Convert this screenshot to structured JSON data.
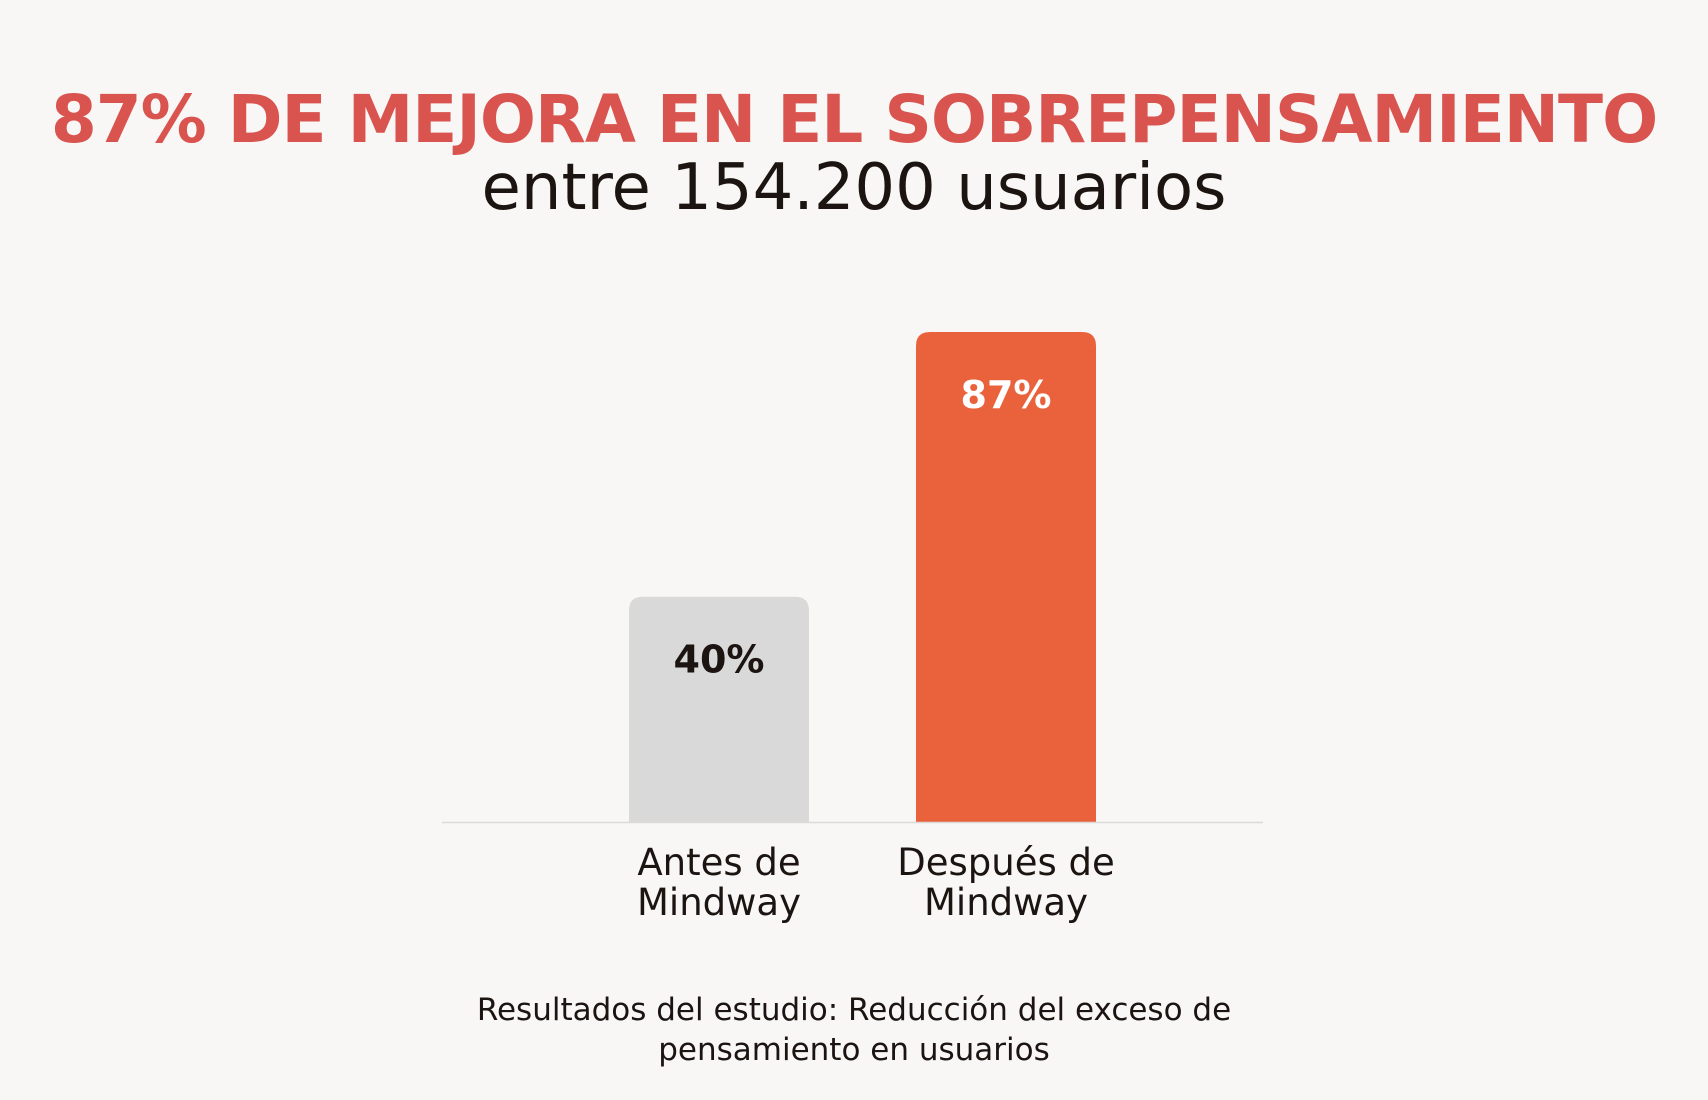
{
  "header": {
    "title": "87% DE MEJORA EN EL SOBREPENSAMIENTO",
    "subtitle": "entre 154.200 usuarios"
  },
  "caption": {
    "line1": "Resultados del estudio: Reducción del exceso de",
    "line2": "pensamiento en usuarios"
  },
  "colors": {
    "background": "#f9f7f5",
    "title": "#d9534f",
    "text": "#1b1411",
    "baseline": "#dcdad8"
  },
  "chart_data": {
    "type": "bar",
    "categories": [
      [
        "Antes de",
        "Mindway"
      ],
      [
        "Después de",
        "Mindway"
      ]
    ],
    "values": [
      40,
      87
    ],
    "value_labels": [
      "40%",
      "87%"
    ],
    "bar_colors": [
      "#d9d9d9",
      "#ea623b"
    ],
    "label_colors": [
      "#1b1411",
      "#ffffff"
    ],
    "ylim": [
      0,
      87
    ],
    "grid": false,
    "legend": "none"
  }
}
